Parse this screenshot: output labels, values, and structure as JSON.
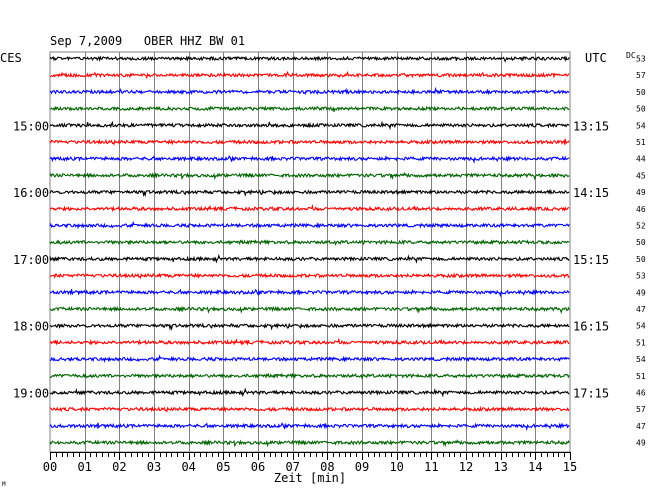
{
  "header": {
    "title": "Sep 7,2009   OBER HHZ BW 01",
    "left_zone": "CES",
    "right_zone": "UTC",
    "dc_label": "DC"
  },
  "chart_data": {
    "type": "line",
    "title": "Sep 7,2009   OBER HHZ BW 01",
    "xlabel": "Zeit [min]",
    "x_ticks": [
      "00",
      "01",
      "02",
      "03",
      "04",
      "05",
      "06",
      "07",
      "08",
      "09",
      "10",
      "11",
      "12",
      "13",
      "14",
      "15"
    ],
    "xlim": [
      0,
      15
    ],
    "grid": true,
    "trace_colors": [
      "#000000",
      "#ff0000",
      "#0000ff",
      "#006400"
    ],
    "traces": 24,
    "left_time_labels": [
      {
        "trace": 4,
        "label": "15:00"
      },
      {
        "trace": 8,
        "label": "16:00"
      },
      {
        "trace": 12,
        "label": "17:00"
      },
      {
        "trace": 16,
        "label": "18:00"
      },
      {
        "trace": 20,
        "label": "19:00"
      }
    ],
    "right_time_labels": [
      {
        "trace": 4,
        "label": "13:15"
      },
      {
        "trace": 8,
        "label": "14:15"
      },
      {
        "trace": 12,
        "label": "15:15"
      },
      {
        "trace": 16,
        "label": "16:15"
      },
      {
        "trace": 20,
        "label": "17:15"
      }
    ],
    "dc_values": [
      "53",
      "57",
      "50",
      "50",
      "54",
      "51",
      "44",
      "45",
      "49",
      "46",
      "52",
      "50",
      "50",
      "53",
      "49",
      "47",
      "54",
      "51",
      "54",
      "51",
      "46",
      "57",
      "47",
      "49"
    ]
  },
  "footer": {
    "corner_mark": "M"
  }
}
